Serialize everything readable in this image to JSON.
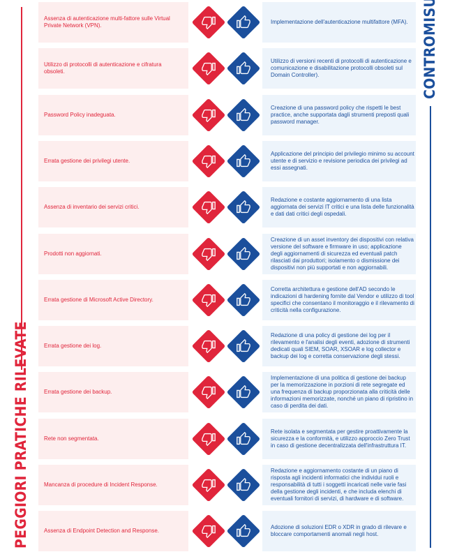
{
  "left_title": "PEGGIORI PRATICHE RILEVATE",
  "right_title": "CONTROMISURE",
  "rows": [
    {
      "problem": "Assenza di autenticazione multi-fattore sulle Virtual Private Network (VPN).",
      "countermeasure": "Implementazione dell'autenticazione multifattore (MFA)."
    },
    {
      "problem": "Utilizzo di protocolli di autenticazione e cifratura obsoleti.",
      "countermeasure": "Utilizzo di versioni recenti di protocolli di autenticazione e comunicazione e disabilitazione protocolli obsoleti sul Domain Controller)."
    },
    {
      "problem": "Password Policy inadeguata.",
      "countermeasure": "Creazione di una password policy che rispetti le best practice, anche supportata dagli strumenti preposti quali password manager."
    },
    {
      "problem": "Errata gestione dei privilegi utente.",
      "countermeasure": "Applicazione del principio del privilegio minimo su account utente e di servizio e revisione periodica dei privilegi ad essi assegnati."
    },
    {
      "problem": "Assenza di inventario dei servizi critici.",
      "countermeasure": "Redazione e costante aggiornamento di una lista aggiornata dei servizi IT critici e una lista delle funzionalità e dati dati critici degli ospedali."
    },
    {
      "problem": "Prodotti non aggiornati.",
      "countermeasure": "Creazione di un asset inventory dei dispositivi con relativa versione del software e firmware in uso; applicazione degli aggiornamenti di sicurezza ed eventuali patch rilasciati dai produttori; isolamento o dismissione dei dispositivi non più supportati e non aggiornabili."
    },
    {
      "problem": "Errata gestione di Microsoft Active Directory.",
      "countermeasure": "Corretta architettura e gestione dell'AD secondo le indicazioni di hardening fornite dal Vendor e utilizzo di tool specifici che consentano il monitoraggio e il rilevamento di criticità nella configurazione."
    },
    {
      "problem": "Errata gestione dei log.",
      "countermeasure": "Redazione di una policy di gestione dei log per il rilevamento e l'analisi degli eventi, adozione di strumenti dedicati quali SIEM, SOAR, XSOAR e log collector e backup dei log e corretta conservazione degli stessi."
    },
    {
      "problem": "Errata gestione dei backup.",
      "countermeasure": "Implementazione di una politica di gestione dei backup per la memorizzazione in porzioni di rete segregate ed una frequenza di backup proporzionata alla criticità delle informazioni memorizzate, nonché un piano di ripristino in caso di perdita dei dati."
    },
    {
      "problem": "Rete non segmentata.",
      "countermeasure": "Rete isolata e segmentata per gestire proattivamente la sicurezza e la conformità, e utilizzo approccio Zero Trust in caso di gestione decentralizzata dell'infrastruttura IT."
    },
    {
      "problem": "Mancanza di procedure di Incident Response.",
      "countermeasure": "Redazione e aggiornamento costante di un piano di risposta agli incidenti informatici che individui ruoli e responsabilità di tutti i soggetti incaricati nelle varie fasi della gestione degli incidenti, e che includa elenchi di eventuali fornitori di servizi, di hardware e di software."
    },
    {
      "problem": "Assenza di Endpoint Detection and Response.",
      "countermeasure": "Adozione di soluzioni EDR o XDR in grado di rilevare e bloccare comportamenti anomali negli host."
    }
  ]
}
